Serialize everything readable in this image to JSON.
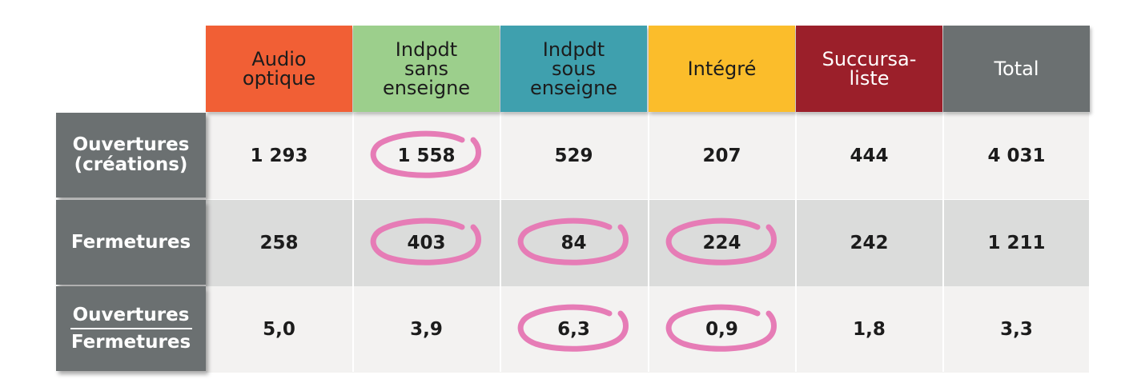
{
  "chart_data": {
    "type": "table",
    "columns": [
      {
        "label": "Audio\noptique",
        "color": "#f15f35",
        "text_color": "#1c1c1c"
      },
      {
        "label": "Indpdt\nsans\nenseigne",
        "color": "#9ccf8c",
        "text_color": "#1c1c1c"
      },
      {
        "label": "Indpdt\nsous\nenseigne",
        "color": "#3fa0ae",
        "text_color": "#1c1c1c"
      },
      {
        "label": "Intégré",
        "color": "#fbbd2b",
        "text_color": "#1c1c1c"
      },
      {
        "label": "Succursa-\nliste",
        "color": "#9b1f2a",
        "text_color": "#ffffff"
      },
      {
        "label": "Total",
        "color": "#6b7071",
        "text_color": "#ffffff"
      }
    ],
    "rows": [
      {
        "label": "Ouvertures\n(créations)",
        "values": [
          "1 293",
          "1 558",
          "529",
          "207",
          "444",
          "4 031"
        ],
        "circled": [
          1
        ]
      },
      {
        "label": "Fermetures",
        "values": [
          "258",
          "403",
          "84",
          "224",
          "242",
          "1 211"
        ],
        "circled": [
          1,
          2,
          3
        ]
      },
      {
        "label_numerator": "Ouvertures",
        "label_denominator": "Fermetures",
        "values": [
          "5,0",
          "3,9",
          "6,3",
          "0,9",
          "1,8",
          "3,3"
        ],
        "circled": [
          2,
          3
        ]
      }
    ],
    "highlight_color": "#e67cb6",
    "row_band_colors": [
      "#f3f2f1",
      "#dbdcdb",
      "#f3f2f1"
    ]
  }
}
